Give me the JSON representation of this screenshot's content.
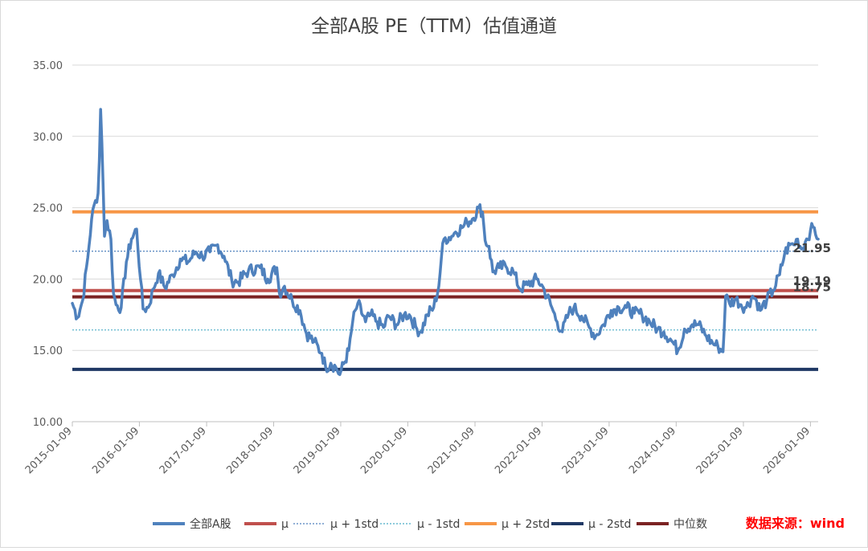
{
  "chart_data": {
    "type": "line",
    "title": "全部A股 PE（TTM）估值通道",
    "xlabel": "",
    "ylabel": "",
    "ylim": [
      10,
      35
    ],
    "yticks": [
      "10.00",
      "15.00",
      "20.00",
      "25.00",
      "30.00",
      "35.00"
    ],
    "xticks": [
      "2015-01-09",
      "2016-01-09",
      "2017-01-09",
      "2018-01-09",
      "2019-01-09",
      "2020-01-09",
      "2021-01-09",
      "2022-01-09",
      "2023-01-09",
      "2024-01-09",
      "2025-01-09",
      "2026-01-09"
    ],
    "x_range": [
      "2015-01-09",
      "2026-02-20"
    ],
    "grid": "horizontal",
    "legend_position": "bottom",
    "series": [
      {
        "name": "全部A股",
        "color": "#4f81bd",
        "style": "solid",
        "points": [
          [
            "2015-01-09",
            18.3
          ],
          [
            "2015-02-06",
            17.3
          ],
          [
            "2015-03-06",
            18.5
          ],
          [
            "2015-04-03",
            21.5
          ],
          [
            "2015-04-24",
            24.2
          ],
          [
            "2015-05-15",
            25.5
          ],
          [
            "2015-05-29",
            26.0
          ],
          [
            "2015-06-05",
            28.3
          ],
          [
            "2015-06-12",
            31.9
          ],
          [
            "2015-06-19",
            29.5
          ],
          [
            "2015-06-26",
            26.4
          ],
          [
            "2015-07-03",
            23.0
          ],
          [
            "2015-07-17",
            24.1
          ],
          [
            "2015-08-07",
            22.8
          ],
          [
            "2015-08-21",
            19.0
          ],
          [
            "2015-09-04",
            18.2
          ],
          [
            "2015-10-02",
            18.0
          ],
          [
            "2015-10-30",
            21.2
          ],
          [
            "2015-11-27",
            22.8
          ],
          [
            "2015-12-25",
            23.5
          ],
          [
            "2016-01-15",
            20.0
          ],
          [
            "2016-01-29",
            17.9
          ],
          [
            "2016-02-26",
            18.0
          ],
          [
            "2016-03-25",
            19.3
          ],
          [
            "2016-04-22",
            20.4
          ],
          [
            "2016-05-27",
            19.4
          ],
          [
            "2016-07-08",
            20.3
          ],
          [
            "2016-08-19",
            21.4
          ],
          [
            "2016-09-30",
            21.2
          ],
          [
            "2016-11-11",
            21.9
          ],
          [
            "2016-12-16",
            21.6
          ],
          [
            "2017-01-27",
            21.9
          ],
          [
            "2017-03-10",
            22.4
          ],
          [
            "2017-04-14",
            21.6
          ],
          [
            "2017-05-26",
            19.9
          ],
          [
            "2017-06-30",
            19.8
          ],
          [
            "2017-08-25",
            20.6
          ],
          [
            "2017-10-27",
            20.8
          ],
          [
            "2017-12-08",
            20.0
          ],
          [
            "2018-01-26",
            20.8
          ],
          [
            "2018-02-09",
            19.0
          ],
          [
            "2018-03-09",
            19.5
          ],
          [
            "2018-04-20",
            18.5
          ],
          [
            "2018-06-01",
            17.8
          ],
          [
            "2018-07-06",
            16.2
          ],
          [
            "2018-08-17",
            15.6
          ],
          [
            "2018-09-28",
            14.8
          ],
          [
            "2018-10-19",
            13.8
          ],
          [
            "2018-11-16",
            14.1
          ],
          [
            "2018-12-14",
            13.8
          ],
          [
            "2019-01-04",
            13.3
          ],
          [
            "2019-02-22",
            15.0
          ],
          [
            "2019-03-15",
            17.0
          ],
          [
            "2019-04-12",
            18.3
          ],
          [
            "2019-05-24",
            17.0
          ],
          [
            "2019-06-21",
            17.5
          ],
          [
            "2019-07-26",
            17.0
          ],
          [
            "2019-08-30",
            16.6
          ],
          [
            "2019-09-27",
            17.4
          ],
          [
            "2019-11-08",
            16.8
          ],
          [
            "2019-12-20",
            17.5
          ],
          [
            "2020-01-17",
            17.5
          ],
          [
            "2020-02-28",
            16.5
          ],
          [
            "2020-03-20",
            16.3
          ],
          [
            "2020-04-24",
            17.5
          ],
          [
            "2020-05-29",
            18.0
          ],
          [
            "2020-06-26",
            19.5
          ],
          [
            "2020-07-10",
            21.5
          ],
          [
            "2020-07-24",
            22.8
          ],
          [
            "2020-09-04",
            23.0
          ],
          [
            "2020-09-25",
            23.3
          ],
          [
            "2020-10-30",
            23.6
          ],
          [
            "2020-11-27",
            24.0
          ],
          [
            "2020-12-25",
            24.2
          ],
          [
            "2021-01-29",
            25.0
          ],
          [
            "2021-02-19",
            24.7
          ],
          [
            "2021-03-05",
            22.7
          ],
          [
            "2021-03-26",
            22.3
          ],
          [
            "2021-04-16",
            20.5
          ],
          [
            "2021-05-21",
            20.8
          ],
          [
            "2021-06-25",
            20.9
          ],
          [
            "2021-08-06",
            20.5
          ],
          [
            "2021-09-10",
            19.3
          ],
          [
            "2021-10-22",
            19.6
          ],
          [
            "2021-12-10",
            20.0
          ],
          [
            "2022-01-07",
            19.6
          ],
          [
            "2022-02-25",
            18.2
          ],
          [
            "2022-04-01",
            17.0
          ],
          [
            "2022-04-29",
            16.3
          ],
          [
            "2022-06-03",
            17.6
          ],
          [
            "2022-07-01",
            18.0
          ],
          [
            "2022-08-12",
            17.4
          ],
          [
            "2022-09-23",
            16.6
          ],
          [
            "2022-10-28",
            16.0
          ],
          [
            "2022-12-09",
            16.8
          ],
          [
            "2023-01-20",
            17.8
          ],
          [
            "2023-03-03",
            18.0
          ],
          [
            "2023-04-14",
            18.0
          ],
          [
            "2023-05-26",
            17.6
          ],
          [
            "2023-07-07",
            17.5
          ],
          [
            "2023-08-18",
            17.0
          ],
          [
            "2023-09-29",
            16.5
          ],
          [
            "2023-11-03",
            16.3
          ],
          [
            "2023-12-08",
            15.8
          ],
          [
            "2024-01-19",
            15.0
          ],
          [
            "2024-02-23",
            16.5
          ],
          [
            "2024-04-05",
            16.8
          ],
          [
            "2024-05-10",
            16.8
          ],
          [
            "2024-06-21",
            16.0
          ],
          [
            "2024-07-26",
            15.5
          ],
          [
            "2024-08-23",
            15.3
          ],
          [
            "2024-09-20",
            14.9
          ],
          [
            "2024-10-04",
            18.8
          ],
          [
            "2024-10-25",
            18.3
          ],
          [
            "2024-11-29",
            18.6
          ],
          [
            "2024-12-27",
            18.2
          ],
          [
            "2025-01-24",
            18.0
          ],
          [
            "2025-02-28",
            18.8
          ],
          [
            "2025-03-21",
            18.5
          ],
          [
            "2025-04-11",
            17.8
          ],
          [
            "2025-05-16",
            18.5
          ],
          [
            "2025-06-20",
            19.2
          ],
          [
            "2025-07-25",
            20.3
          ],
          [
            "2025-08-22",
            21.8
          ],
          [
            "2025-09-19",
            22.4
          ],
          [
            "2025-10-10",
            22.4
          ],
          [
            "2025-10-31",
            22.8
          ],
          [
            "2025-11-21",
            22.1
          ],
          [
            "2025-12-12",
            22.6
          ],
          [
            "2026-01-09",
            23.4
          ],
          [
            "2026-01-30",
            23.6
          ],
          [
            "2026-02-20",
            22.8
          ]
        ]
      },
      {
        "name": "μ",
        "color": "#c0504d",
        "style": "solid",
        "value": 19.19,
        "label": "19.19"
      },
      {
        "name": "μ + 1std",
        "color": "#4f81bd",
        "style": "dotted",
        "value": 21.95,
        "label": "21.95"
      },
      {
        "name": "μ - 1std",
        "color": "#4bacc6",
        "style": "dotted",
        "value": 16.43,
        "label": ""
      },
      {
        "name": "μ + 2std",
        "color": "#f79646",
        "style": "solid",
        "value": 24.71,
        "label": ""
      },
      {
        "name": "μ - 2std",
        "color": "#1f3864",
        "style": "solid",
        "value": 13.67,
        "label": ""
      },
      {
        "name": "中位数",
        "color": "#7b2323",
        "style": "solid",
        "value": 18.75,
        "label": "18.75"
      }
    ],
    "source_note": "数据来源：wind",
    "source_color": "#ff0000"
  }
}
